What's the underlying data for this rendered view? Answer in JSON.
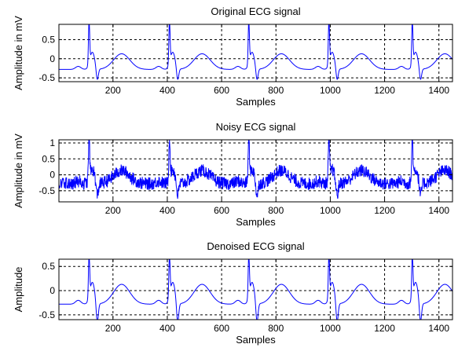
{
  "chart_data": [
    {
      "type": "line",
      "title": "Original ECG signal",
      "xlabel": "Samples",
      "ylabel": "Amplitude in mV",
      "xlim": [
        1,
        1450
      ],
      "ylim": [
        -0.6,
        0.9
      ],
      "xticks": [
        200,
        400,
        600,
        800,
        1000,
        1200,
        1400
      ],
      "yticks": [
        -0.5,
        0,
        0.5
      ],
      "grid": true,
      "series_color": "#0000ff",
      "noise": 0,
      "beats": [
        112,
        408,
        700,
        995,
        1302
      ],
      "baseline": -0.28,
      "r_peak": 0.85,
      "s_trough": -0.5,
      "t_wave": 0.18
    },
    {
      "type": "line",
      "title": "Noisy ECG signal",
      "xlabel": "Samples",
      "ylabel": "Amplitude in mV",
      "xlim": [
        1,
        1450
      ],
      "ylim": [
        -0.85,
        1.1
      ],
      "xticks": [
        200,
        400,
        600,
        800,
        1000,
        1200,
        1400
      ],
      "yticks": [
        -0.5,
        0,
        0.5,
        1
      ],
      "grid": true,
      "series_color": "#0000ff",
      "noise": 0.2,
      "beats": [
        112,
        408,
        700,
        995,
        1302
      ],
      "baseline": -0.28,
      "r_peak": 1.05,
      "s_trough": -0.6,
      "t_wave": 0.18
    },
    {
      "type": "line",
      "title": "Denoised ECG signal",
      "xlabel": "Samples",
      "ylabel": "Amplitude",
      "xlim": [
        1,
        1450
      ],
      "ylim": [
        -0.6,
        0.65
      ],
      "xticks": [
        200,
        400,
        600,
        800,
        1000,
        1200,
        1400
      ],
      "yticks": [
        -0.5,
        0,
        0.5
      ],
      "grid": true,
      "series_color": "#0000ff",
      "noise": 0,
      "beats": [
        112,
        408,
        700,
        995,
        1302
      ],
      "baseline": -0.28,
      "r_peak": 0.62,
      "s_trough": -0.6,
      "t_wave": 0.18
    }
  ]
}
